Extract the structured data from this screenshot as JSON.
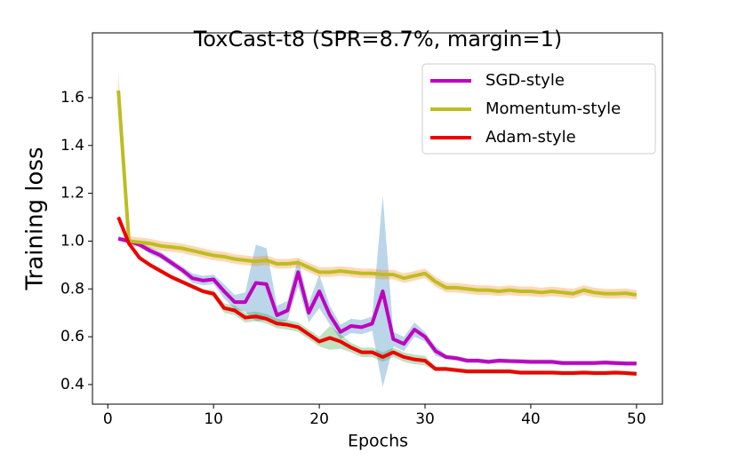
{
  "chart_data": {
    "type": "line",
    "title": "ToxCast-t8 (SPR=8.7%, margin=1)",
    "x_label": "Epochs",
    "y_label": "Training loss",
    "x": [
      1,
      2,
      3,
      4,
      5,
      6,
      7,
      8,
      9,
      10,
      11,
      12,
      13,
      14,
      15,
      16,
      17,
      18,
      19,
      20,
      21,
      22,
      23,
      24,
      25,
      26,
      27,
      28,
      29,
      30,
      31,
      32,
      33,
      34,
      35,
      36,
      37,
      38,
      39,
      40,
      41,
      42,
      43,
      44,
      45,
      46,
      47,
      48,
      49,
      50
    ],
    "xlim": [
      -1.45,
      52.45
    ],
    "xticks": [
      0,
      10,
      20,
      30,
      40,
      50
    ],
    "ylim": [
      0.318,
      1.871
    ],
    "yticks": [
      0.4,
      0.6,
      0.8,
      {
        "value": 1,
        "label": "1.0"
      },
      1.2,
      1.4,
      1.6
    ],
    "legend": "upper right",
    "series": [
      {
        "name": "SGD-style",
        "color": "#bf00bf",
        "band_color": "#1f77b4",
        "values": [
          1.01,
          1.0,
          0.985,
          0.96,
          0.94,
          0.91,
          0.88,
          0.845,
          0.835,
          0.84,
          0.79,
          0.745,
          0.745,
          0.825,
          0.82,
          0.69,
          0.71,
          0.87,
          0.7,
          0.79,
          0.69,
          0.62,
          0.645,
          0.64,
          0.655,
          0.79,
          0.59,
          0.57,
          0.63,
          0.6,
          0.54,
          0.515,
          0.51,
          0.5,
          0.5,
          0.495,
          0.5,
          0.498,
          0.497,
          0.495,
          0.495,
          0.495,
          0.49,
          0.49,
          0.49,
          0.49,
          0.492,
          0.49,
          0.488,
          0.488
        ],
        "band": [
          0.01,
          0.01,
          0.01,
          0.015,
          0.015,
          0.015,
          0.015,
          0.02,
          0.02,
          0.02,
          0.03,
          0.03,
          0.04,
          0.16,
          0.15,
          0.04,
          0.04,
          0.06,
          0.04,
          0.07,
          0.04,
          0.03,
          0.03,
          0.03,
          0.03,
          0.4,
          0.03,
          0.03,
          0.03,
          0.02,
          0.02,
          0.01,
          0.01,
          0.01,
          0.01,
          0.01,
          0.01,
          0.01,
          0.01,
          0.01,
          0.01,
          0.01,
          0.01,
          0.01,
          0.01,
          0.01,
          0.01,
          0.01,
          0.01,
          0.01
        ]
      },
      {
        "name": "Momentum-style",
        "color": "#bcbd22",
        "band_color": "#ff7f0e",
        "values": [
          1.63,
          1.0,
          0.995,
          0.99,
          0.98,
          0.975,
          0.97,
          0.96,
          0.95,
          0.94,
          0.935,
          0.925,
          0.92,
          0.915,
          0.92,
          0.905,
          0.905,
          0.91,
          0.89,
          0.87,
          0.87,
          0.875,
          0.87,
          0.865,
          0.865,
          0.86,
          0.86,
          0.845,
          0.855,
          0.865,
          0.83,
          0.805,
          0.805,
          0.8,
          0.795,
          0.795,
          0.79,
          0.795,
          0.79,
          0.79,
          0.785,
          0.79,
          0.785,
          0.78,
          0.795,
          0.785,
          0.78,
          0.78,
          0.782,
          0.775
        ],
        "band": [
          0.08,
          0.02,
          0.02,
          0.02,
          0.02,
          0.02,
          0.02,
          0.02,
          0.02,
          0.02,
          0.02,
          0.02,
          0.02,
          0.02,
          0.02,
          0.02,
          0.02,
          0.02,
          0.02,
          0.02,
          0.02,
          0.02,
          0.02,
          0.02,
          0.02,
          0.02,
          0.02,
          0.02,
          0.02,
          0.02,
          0.02,
          0.02,
          0.02,
          0.02,
          0.02,
          0.02,
          0.02,
          0.02,
          0.02,
          0.02,
          0.02,
          0.02,
          0.02,
          0.02,
          0.02,
          0.02,
          0.02,
          0.02,
          0.02,
          0.02
        ]
      },
      {
        "name": "Adam-style",
        "color": "#ee0000",
        "band_color": "#2ca02c",
        "values": [
          1.1,
          0.99,
          0.93,
          0.9,
          0.875,
          0.85,
          0.83,
          0.81,
          0.79,
          0.78,
          0.72,
          0.71,
          0.68,
          0.685,
          0.675,
          0.655,
          0.65,
          0.64,
          0.61,
          0.58,
          0.595,
          0.58,
          0.555,
          0.535,
          0.535,
          0.515,
          0.535,
          0.515,
          0.505,
          0.5,
          0.465,
          0.465,
          0.46,
          0.455,
          0.455,
          0.455,
          0.455,
          0.455,
          0.45,
          0.45,
          0.45,
          0.45,
          0.448,
          0.448,
          0.45,
          0.448,
          0.448,
          0.45,
          0.448,
          0.445
        ],
        "band": [
          0.01,
          0.01,
          0.01,
          0.01,
          0.01,
          0.01,
          0.01,
          0.01,
          0.01,
          0.015,
          0.02,
          0.02,
          0.02,
          0.02,
          0.02,
          0.02,
          0.02,
          0.02,
          0.02,
          0.02,
          0.05,
          0.03,
          0.02,
          0.02,
          0.02,
          0.02,
          0.02,
          0.02,
          0.02,
          0.02,
          0.01,
          0.01,
          0.01,
          0.01,
          0.01,
          0.01,
          0.01,
          0.01,
          0.01,
          0.01,
          0.01,
          0.01,
          0.01,
          0.01,
          0.01,
          0.01,
          0.01,
          0.01,
          0.01,
          0.01
        ]
      }
    ]
  }
}
